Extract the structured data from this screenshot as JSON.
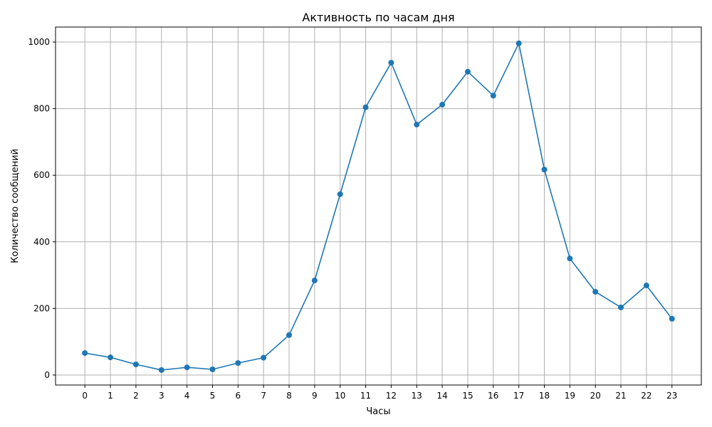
{
  "chart_data": {
    "type": "line",
    "title": "Активность по часам дня",
    "xlabel": "Часы",
    "ylabel": "Количество сообщений",
    "x": [
      0,
      1,
      2,
      3,
      4,
      5,
      6,
      7,
      8,
      9,
      10,
      11,
      12,
      13,
      14,
      15,
      16,
      17,
      18,
      19,
      20,
      21,
      22,
      23
    ],
    "series": [
      {
        "values": [
          66,
          53,
          32,
          15,
          23,
          17,
          36,
          52,
          120,
          284,
          543,
          804,
          938,
          752,
          812,
          911,
          839,
          996,
          617,
          350,
          250,
          203,
          269,
          169
        ],
        "color": "#1f77b4",
        "marker": "circle"
      }
    ],
    "xlim": [
      -1.15,
      24.15
    ],
    "ylim": [
      -30,
      1045
    ],
    "xticks": [
      0,
      1,
      2,
      3,
      4,
      5,
      6,
      7,
      8,
      9,
      10,
      11,
      12,
      13,
      14,
      15,
      16,
      17,
      18,
      19,
      20,
      21,
      22,
      23
    ],
    "yticks": [
      0,
      200,
      400,
      600,
      800,
      1000
    ],
    "grid": true
  }
}
